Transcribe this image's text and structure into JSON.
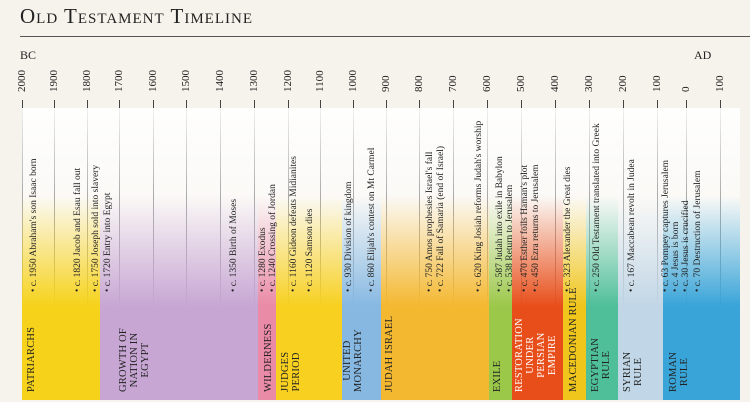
{
  "title": "Old Testament Timeline",
  "era_left": "BC",
  "era_right": "AD",
  "ticks": [
    "2000",
    "1900",
    "1800",
    "1700",
    "1600",
    "1500",
    "1400",
    "1300",
    "1200",
    "1100",
    "1000",
    "900",
    "800",
    "700",
    "600",
    "500",
    "400",
    "300",
    "200",
    "100",
    "0",
    "100"
  ],
  "events": [
    {
      "text": "c. 1950 Abraham's son Isaac born"
    },
    {
      "text": "c. 1820 Jacob and Esau fall out"
    },
    {
      "text": "c. 1750 Joseph sold into slavery"
    },
    {
      "text": "c. 1720 Entry into Egypt"
    },
    {
      "text": "c. 1350 Birth of Moses"
    },
    {
      "text": "c. 1280 Exodus"
    },
    {
      "text": "c. 1240 Crossing of Jordan"
    },
    {
      "text": "c. 1160 Gideon defeats Midianites"
    },
    {
      "text": "c. 1120 Samson dies"
    },
    {
      "text": "c. 930 Division of kingdom"
    },
    {
      "text": "c. 860 Elijah's contest on Mt Carmel"
    },
    {
      "text": "c. 750 Amos prophesies Israel's fall"
    },
    {
      "text": "c. 722 Fall of Samaria (end of Israel)"
    },
    {
      "text": "c. 620 King Josiah reforms Judah's worship"
    },
    {
      "text": "c. 587 Judah into exile in Babylon"
    },
    {
      "text": "c. 538 Return to Jerusalem"
    },
    {
      "text": "c. 470 Esther foils Haman's plot"
    },
    {
      "text": "c. 450 Ezra returns to Jerusalem"
    },
    {
      "text": "c. 323 Alexander the Great dies"
    },
    {
      "text": "c. 250 Old Testament translated into Greek"
    },
    {
      "text": "c. 167 Maccabean revolt in Judea"
    },
    {
      "text": "c. 63 Pompey captures Jerusalem"
    },
    {
      "text": "c. 4 Jesus is born"
    },
    {
      "text": "c. 30 Jesus is crucified"
    },
    {
      "text": "c. 70 Destruction of Jerusalem"
    }
  ],
  "periods": [
    {
      "lines": [
        "PATRIARCHS"
      ],
      "color": "#f6d21a"
    },
    {
      "lines": [
        "GROWTH OF",
        "NATION IN",
        "EGYPT"
      ],
      "color": "#c7a6d3"
    },
    {
      "lines": [
        "WILDERNESS"
      ],
      "color": "#e98aa6"
    },
    {
      "lines": [
        "JUDGES",
        "PERIOD"
      ],
      "color": "#f7d020"
    },
    {
      "lines": [
        "UNITED",
        "MONARCHY"
      ],
      "color": "#86b8e2"
    },
    {
      "lines": [
        "JUDAH  ISRAEL"
      ],
      "color": "#f4b830"
    },
    {
      "lines": [
        "EXILE"
      ],
      "color": "#9cc84a"
    },
    {
      "lines": [
        "RESTORATION",
        "UNDER",
        "PERSIAN",
        "EMPIRE"
      ],
      "color": "#e84e1a"
    },
    {
      "lines": [
        "MACEDONIAN RULE"
      ],
      "color": "#f0c61c"
    },
    {
      "lines": [
        "EGYPTIAN",
        "RULE"
      ],
      "color": "#4fbf9a"
    },
    {
      "lines": [
        "SYRIAN",
        "RULE"
      ],
      "color": "#c1d6e6"
    },
    {
      "lines": [
        "ROMAN",
        "RULE"
      ],
      "color": "#38a4d8"
    }
  ]
}
